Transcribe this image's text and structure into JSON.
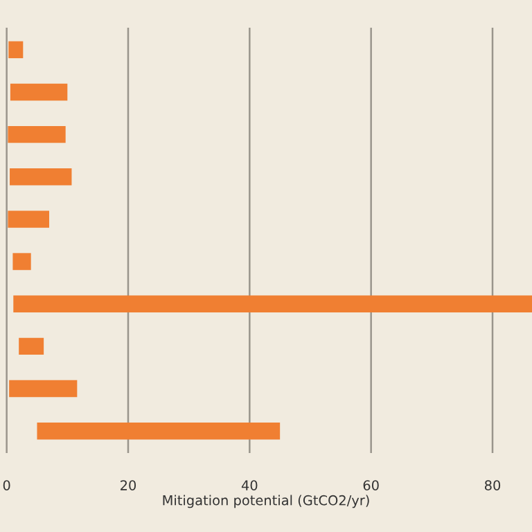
{
  "chart_data": {
    "type": "bar",
    "orientation": "horizontal",
    "xlabel": "Mitigation potential (GtCO2/yr)",
    "categories": [
      null,
      null,
      null,
      null,
      null,
      null,
      null,
      null,
      null,
      null
    ],
    "base": [
      0.3,
      0.6,
      0.2,
      0.5,
      0.2,
      1.0,
      1.1,
      2.0,
      0.4,
      5.0
    ],
    "values": [
      2.4,
      9.4,
      9.5,
      10.2,
      6.8,
      3.0,
      85.4,
      4.1,
      11.2,
      40.0
    ],
    "color": "#f07f32",
    "xlim": [
      -1.1,
      86.5
    ],
    "xticks": [
      0,
      20,
      40,
      60,
      80
    ],
    "grid": "x"
  }
}
